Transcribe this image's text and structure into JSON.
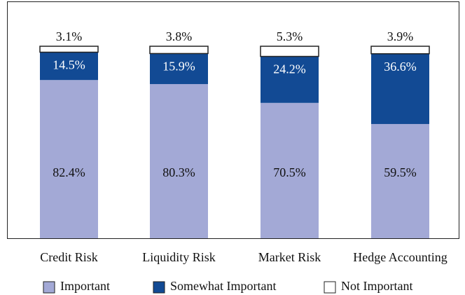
{
  "chart_data": {
    "type": "stacked-bar",
    "categories": [
      "Credit Risk",
      "Liquidity Risk",
      "Market Risk",
      "Hedge Accounting"
    ],
    "series": [
      {
        "name": "Important",
        "color": "#a3a9d6",
        "values": [
          82.4,
          80.3,
          70.5,
          59.5
        ],
        "value_labels": [
          "82.4%",
          "80.3%",
          "70.5%",
          "59.5%"
        ]
      },
      {
        "name": "Somewhat Important",
        "color": "#124a94",
        "values": [
          14.5,
          15.9,
          24.2,
          36.6
        ],
        "value_labels": [
          "14.5%",
          "15.9%",
          "24.2%",
          "36.6%"
        ]
      },
      {
        "name": "Not Important",
        "color": "#ffffff",
        "values": [
          3.1,
          3.8,
          5.3,
          3.9
        ],
        "value_labels": [
          "3.1%",
          "3.8%",
          "5.3%",
          "3.9%"
        ]
      }
    ],
    "legend": "bottom"
  }
}
